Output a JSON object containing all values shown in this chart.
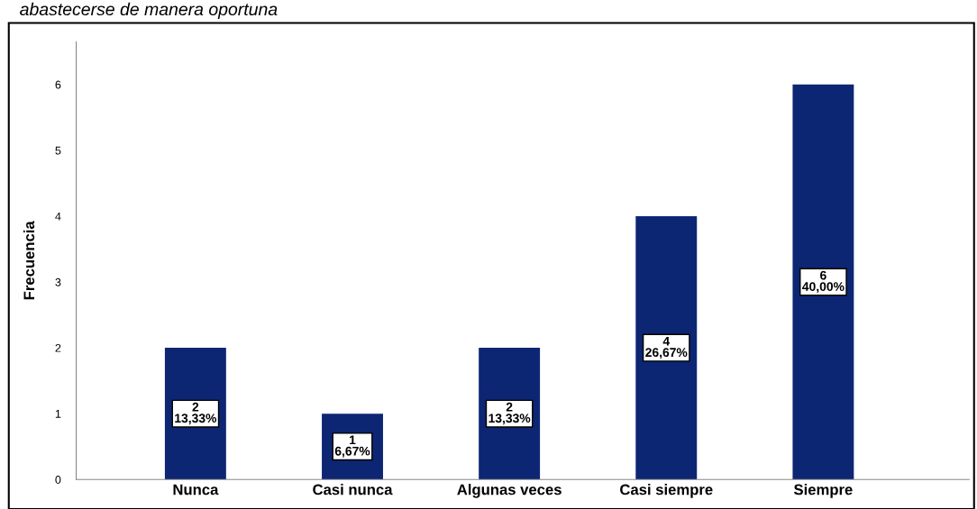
{
  "chart_data": {
    "type": "bar",
    "title": "abastecerse de manera oportuna",
    "ylabel": "Frecuencia",
    "categories": [
      "Nunca",
      "Casi nunca",
      "Algunas veces",
      "Casi siempre",
      "Siempre"
    ],
    "values": [
      2,
      1,
      2,
      4,
      6
    ],
    "color": "#0d2673",
    "value_labels": [
      "2\n13,33%",
      "1\n6,67%",
      "2\n13,33%",
      "4\n26,67%",
      "6\n40,00%"
    ],
    "ylim": [
      0,
      6.65
    ],
    "yticks": [
      0,
      1,
      2,
      3,
      4,
      5,
      6
    ],
    "grid": false,
    "legend": false
  }
}
